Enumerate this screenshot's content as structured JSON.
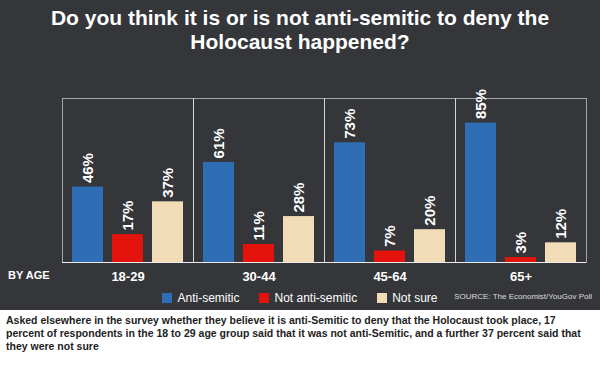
{
  "chart_data": {
    "type": "bar",
    "title": "Do you think it is or is not anti-semitic to deny the Holocaust happened?",
    "x_label": "BY AGE",
    "categories": [
      "18-29",
      "30-44",
      "45-64",
      "65+"
    ],
    "series": [
      {
        "name": "Anti-semitic",
        "color": "#2f6db5",
        "values": [
          46,
          61,
          73,
          85
        ],
        "value_labels": [
          "46%",
          "61%",
          "73%",
          "85%"
        ]
      },
      {
        "name": "Not anti-semitic",
        "color": "#e3120b",
        "values": [
          17,
          11,
          7,
          3
        ],
        "value_labels": [
          "17%",
          "11%",
          "7%",
          "3%"
        ]
      },
      {
        "name": "Not sure",
        "color": "#f2dcb8",
        "values": [
          37,
          28,
          20,
          12
        ],
        "value_labels": [
          "37%",
          "28%",
          "20%",
          "12%"
        ]
      }
    ],
    "ylim": [
      0,
      100
    ],
    "yticks": [],
    "data_labels": true,
    "tick_labels": "x",
    "legend": "bottom",
    "source": "SOURCE: The Economist/YouGov Poll",
    "caption": "Asked elsewhere in the survey whether they believe it is anti-Semitic to deny that the Holocaust took place, 17 percent of respondents in the 18 to 29 age group said that it was not anti-Semitic, and a further 37 percent said that they were not sure"
  }
}
